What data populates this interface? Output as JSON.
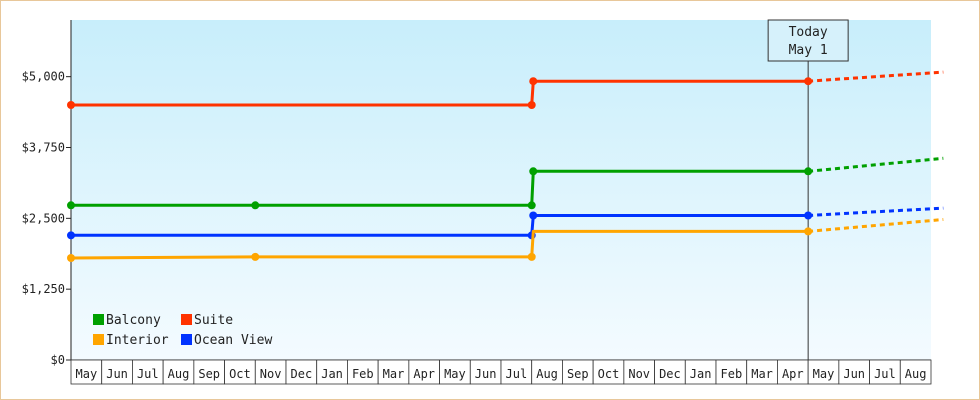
{
  "chart_data": {
    "type": "line",
    "title": "",
    "xlabel": "",
    "ylabel": "",
    "ylim": [
      0,
      6000
    ],
    "yticks": [
      0,
      1250,
      2500,
      3750,
      5000
    ],
    "ytick_labels": [
      "$0",
      "$1,250",
      "$2,500",
      "$3,750",
      "$5,000"
    ],
    "months": [
      "May",
      "Jun",
      "Jul",
      "Aug",
      "Sep",
      "Oct",
      "Nov",
      "Dec",
      "Jan",
      "Feb",
      "Mar",
      "Apr",
      "May",
      "Jun",
      "Jul",
      "Aug",
      "Sep",
      "Oct",
      "Nov",
      "Dec",
      "Jan",
      "Feb",
      "Mar",
      "Apr",
      "May",
      "Jun",
      "Jul",
      "Aug"
    ],
    "today": {
      "line1": "Today",
      "line2": "May 1",
      "index": 24
    },
    "grid": false,
    "legend_position": "bottom-left",
    "series": [
      {
        "name": "Suite",
        "color": "#ff3300",
        "points": [
          [
            0,
            4500
          ],
          [
            15,
            4500
          ],
          [
            15.05,
            4920
          ],
          [
            24,
            4920
          ]
        ],
        "markers": [
          0,
          15,
          15.05,
          24
        ],
        "forecast": [
          [
            24,
            4920
          ],
          [
            28.4,
            5080
          ]
        ]
      },
      {
        "name": "Balcony",
        "color": "#00a000",
        "points": [
          [
            0,
            2730
          ],
          [
            15,
            2730
          ],
          [
            15.05,
            3330
          ],
          [
            24,
            3330
          ]
        ],
        "markers": [
          0,
          6,
          15,
          15.05,
          24
        ],
        "forecast": [
          [
            24,
            3330
          ],
          [
            28.4,
            3560
          ]
        ]
      },
      {
        "name": "Ocean View",
        "color": "#0033ff",
        "points": [
          [
            0,
            2200
          ],
          [
            15,
            2200
          ],
          [
            15.05,
            2550
          ],
          [
            24,
            2550
          ]
        ],
        "markers": [
          0,
          15,
          15.05,
          24
        ],
        "forecast": [
          [
            24,
            2550
          ],
          [
            28.4,
            2680
          ]
        ]
      },
      {
        "name": "Interior",
        "color": "#ffa500",
        "points": [
          [
            0,
            1800
          ],
          [
            6,
            1820
          ],
          [
            15,
            1820
          ],
          [
            15.05,
            2270
          ],
          [
            24,
            2270
          ]
        ],
        "markers": [
          0,
          6,
          15,
          24
        ],
        "forecast": [
          [
            24,
            2270
          ],
          [
            28.4,
            2480
          ]
        ]
      }
    ],
    "legend_order": [
      "Balcony",
      "Suite",
      "Interior",
      "Ocean View"
    ]
  }
}
